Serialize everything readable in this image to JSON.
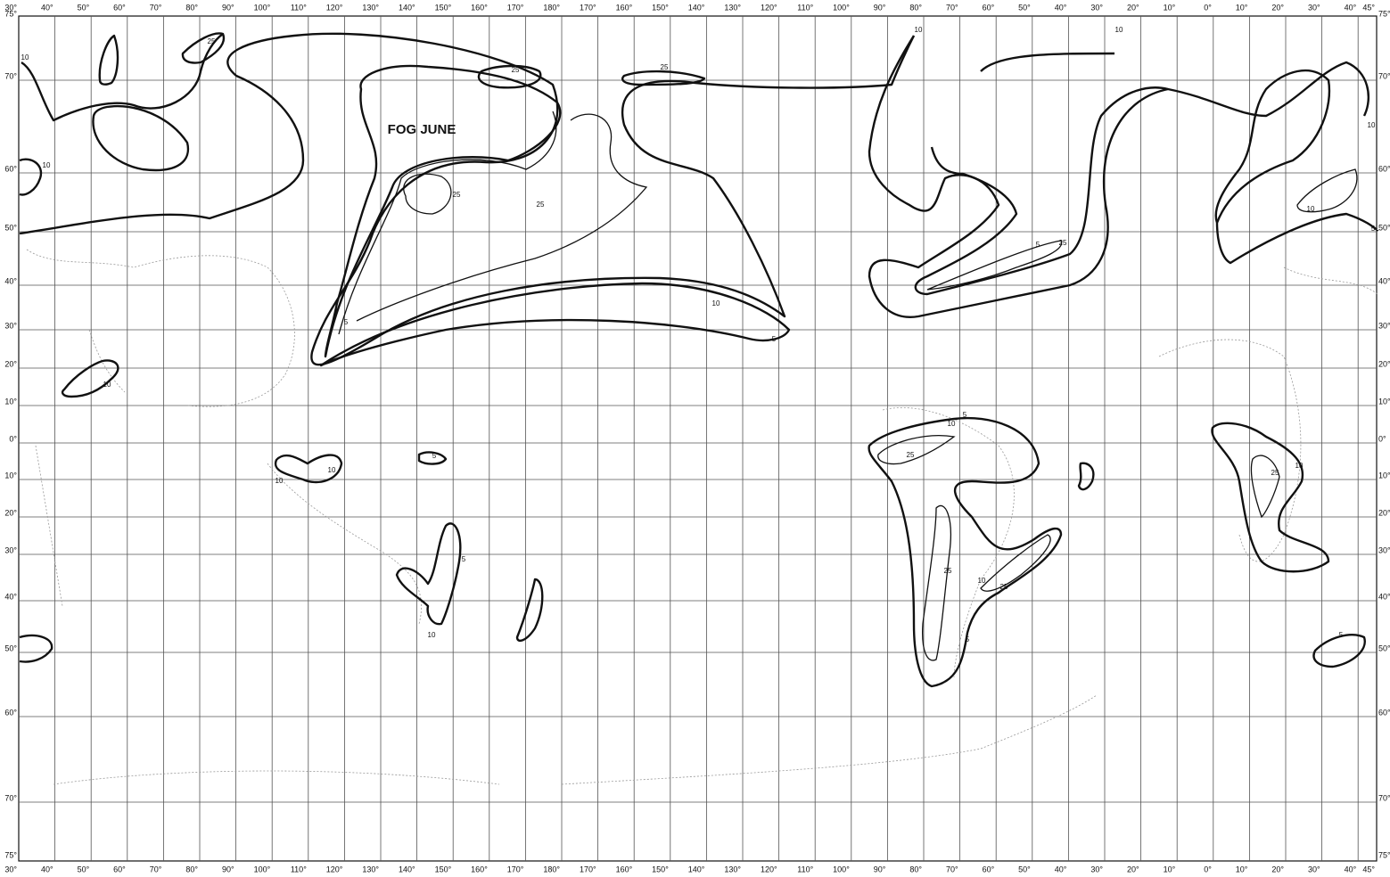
{
  "title": "FOG JUNE",
  "longitude_labels": [
    "30°",
    "40°",
    "50°",
    "60°",
    "70°",
    "80°",
    "90°",
    "100°",
    "110°",
    "120°",
    "130°",
    "140°",
    "150°",
    "160°",
    "170°",
    "180°",
    "170°",
    "160°",
    "150°",
    "140°",
    "130°",
    "120°",
    "110°",
    "100°",
    "90°",
    "80°",
    "70°",
    "60°",
    "50°",
    "40°",
    "30°",
    "20°",
    "10°",
    "0°",
    "10°",
    "20°",
    "30°",
    "40°",
    "45°"
  ],
  "latitude_labels": [
    "75°",
    "70°",
    "60°",
    "50°",
    "40°",
    "30°",
    "20°",
    "10°",
    "0°",
    "10°",
    "20°",
    "30°",
    "40°",
    "50°",
    "60°",
    "70°",
    "75°"
  ],
  "contour_labels": [
    "25",
    "10",
    "10",
    "25",
    "25",
    "25",
    "25",
    "10",
    "5",
    "10",
    "10",
    "10",
    "10",
    "5",
    "25",
    "10",
    "10",
    "10",
    "5",
    "5",
    "10",
    "5",
    "10",
    "25",
    "25",
    "10",
    "25",
    "5",
    "25",
    "10",
    "5",
    "5",
    "5"
  ]
}
